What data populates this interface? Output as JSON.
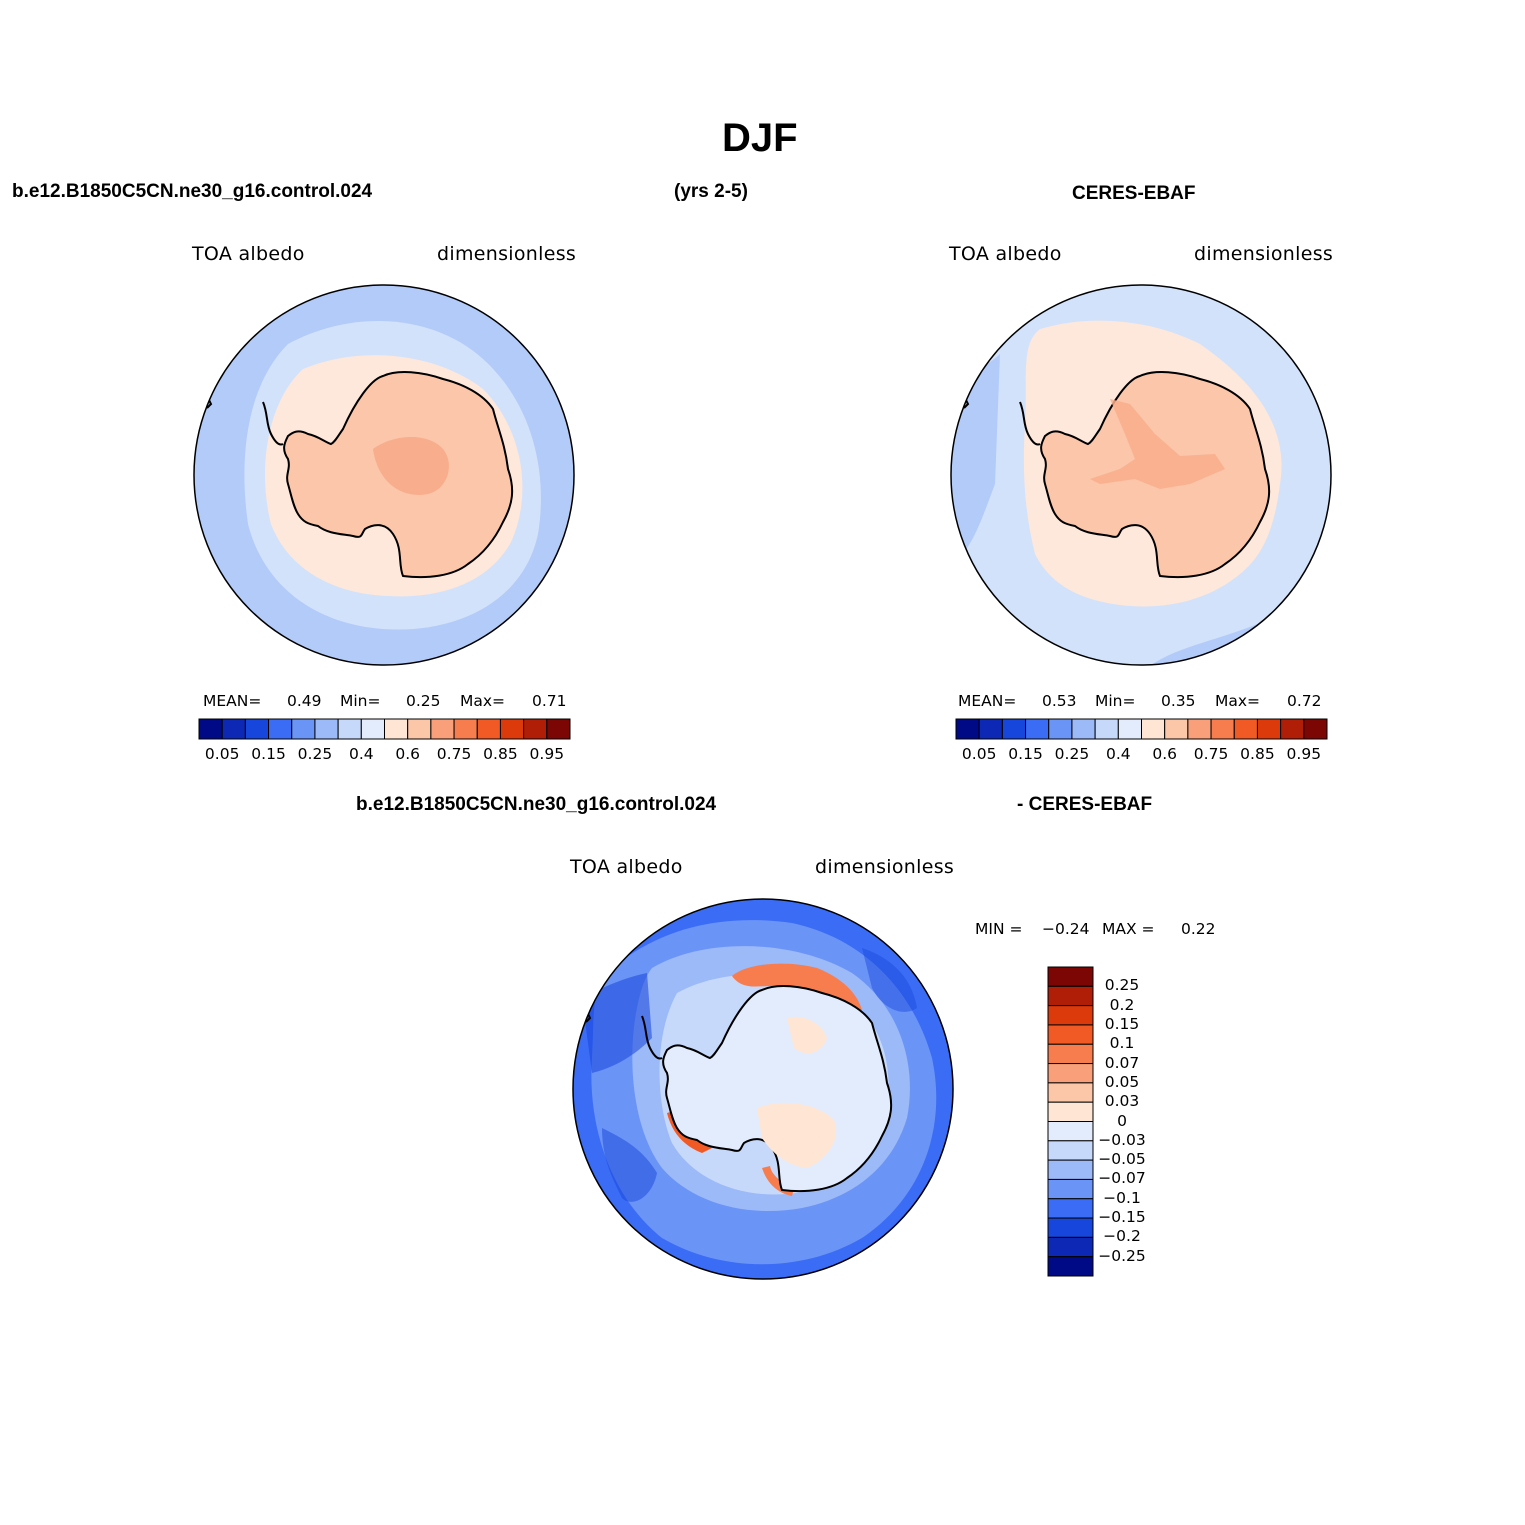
{
  "title": "DJF",
  "header": {
    "case_name": "b.e12.B1850C5CN.ne30_g16.control.024",
    "years": "(yrs 2-5)",
    "obs_name": "CERES-EBAF",
    "diff_case_name": "b.e12.B1850C5CN.ne30_g16.control.024",
    "diff_obs_name": "- CERES-EBAF"
  },
  "panels": [
    {
      "id": "model",
      "variable": "TOA albedo",
      "units": "dimensionless",
      "stats": {
        "mean_label": "MEAN=",
        "mean": "0.49",
        "min_label": "Min=",
        "min": "0.25",
        "max_label": "Max=",
        "max": "0.71"
      }
    },
    {
      "id": "obs",
      "variable": "TOA albedo",
      "units": "dimensionless",
      "stats": {
        "mean_label": "MEAN=",
        "mean": "0.53",
        "min_label": "Min=",
        "min": "0.35",
        "max_label": "Max=",
        "max": "0.72"
      }
    },
    {
      "id": "diff",
      "variable": "TOA albedo",
      "units": "dimensionless",
      "stats": {
        "min_label": "MIN =",
        "min": "−0.24",
        "max_label": "MAX =",
        "max": "0.22"
      }
    }
  ],
  "colorbars": {
    "albedo": {
      "colors": [
        "#000a87",
        "#0c28b4",
        "#1746dc",
        "#3b6cf5",
        "#6b94f7",
        "#9cb9f8",
        "#c6d9fa",
        "#e2ecfc",
        "#ffe6d4",
        "#fcc6a8",
        "#f9a07a",
        "#f77d4e",
        "#f25a25",
        "#dd3a0c",
        "#b01e07",
        "#7c0603"
      ],
      "tick_labels": [
        "0.05",
        "0.15",
        "0.25",
        "0.4",
        "0.6",
        "0.75",
        "0.85",
        "0.95"
      ]
    },
    "diff": {
      "colors": [
        "#7c0603",
        "#b01e07",
        "#dd3a0c",
        "#f25a25",
        "#f77d4e",
        "#f9a07a",
        "#fcc6a8",
        "#ffe6d4",
        "#e2ecfc",
        "#c6d9fa",
        "#9cb9f8",
        "#6b94f7",
        "#3b6cf5",
        "#1746dc",
        "#0c28b4",
        "#000a87"
      ],
      "tick_labels": [
        "0.25",
        "0.2",
        "0.15",
        "0.1",
        "0.07",
        "0.05",
        "0.03",
        "0",
        "−0.03",
        "−0.05",
        "−0.07",
        "−0.1",
        "−0.15",
        "−0.2",
        "−0.25"
      ]
    }
  }
}
